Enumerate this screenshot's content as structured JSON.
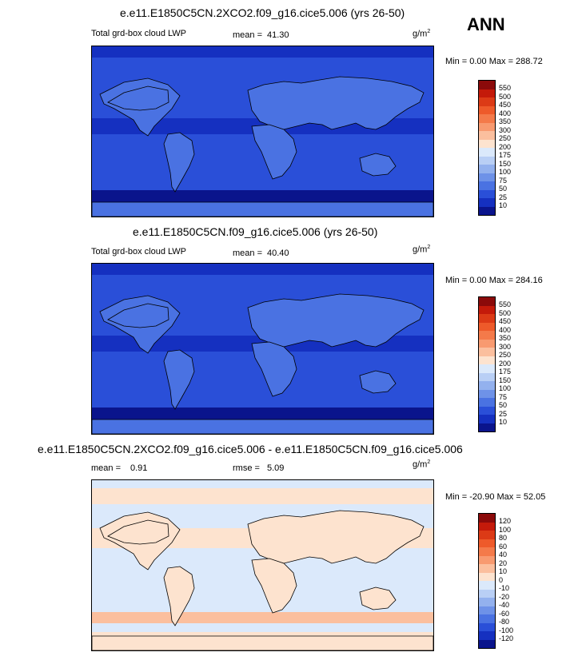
{
  "season": "ANN",
  "panels": [
    {
      "title": "e.e11.E1850C5CN.2XCO2.f09_g16.cice5.006 (yrs 26-50)",
      "variable": "Total grd-box cloud LWP",
      "stat1_label": "mean =",
      "stat1_value": "41.30",
      "stat2_label": "",
      "stat2_value": "",
      "unit_base": "g/m",
      "unit_exp": "2",
      "minmax": "Min =   0.00 Max = 288.72",
      "colorbar_labels": [
        "550",
        "500",
        "450",
        "400",
        "350",
        "300",
        "250",
        "200",
        "175",
        "150",
        "100",
        "75",
        "50",
        "25",
        "10"
      ],
      "colorbar_colors": [
        "#8b0a0a",
        "#c41a0a",
        "#dc3a16",
        "#ee5a2a",
        "#f47a4a",
        "#f89a70",
        "#fbbf9e",
        "#fde3cf",
        "#dbe9fb",
        "#b9cff5",
        "#93b1ee",
        "#6e92e8",
        "#4a72e2",
        "#2a4fd8",
        "#1530c0",
        "#0a148c"
      ]
    },
    {
      "title": "e.e11.E1850C5CN.f09_g16.cice5.006 (yrs 26-50)",
      "variable": "Total grd-box cloud LWP",
      "stat1_label": "mean =",
      "stat1_value": "40.40",
      "stat2_label": "",
      "stat2_value": "",
      "unit_base": "g/m",
      "unit_exp": "2",
      "minmax": "Min =   0.00 Max = 284.16",
      "colorbar_labels": [
        "550",
        "500",
        "450",
        "400",
        "350",
        "300",
        "250",
        "200",
        "175",
        "150",
        "100",
        "75",
        "50",
        "25",
        "10"
      ],
      "colorbar_colors": [
        "#8b0a0a",
        "#c41a0a",
        "#dc3a16",
        "#ee5a2a",
        "#f47a4a",
        "#f89a70",
        "#fbbf9e",
        "#fde3cf",
        "#dbe9fb",
        "#b9cff5",
        "#93b1ee",
        "#6e92e8",
        "#4a72e2",
        "#2a4fd8",
        "#1530c0",
        "#0a148c"
      ]
    },
    {
      "title": "e.e11.E1850C5CN.2XCO2.f09_g16.cice5.006 - e.e11.E1850C5CN.f09_g16.cice5.006",
      "variable": "",
      "stat1_label": "mean =",
      "stat1_value": "0.91",
      "stat2_label": "rmse =",
      "stat2_value": "5.09",
      "unit_base": "g/m",
      "unit_exp": "2",
      "minmax": "Min = -20.90 Max =  52.05",
      "colorbar_labels": [
        "120",
        "100",
        "80",
        "60",
        "40",
        "20",
        "10",
        "0",
        "-10",
        "-20",
        "-40",
        "-60",
        "-80",
        "-100",
        "-120"
      ],
      "colorbar_colors": [
        "#8b0a0a",
        "#c41a0a",
        "#dc3a16",
        "#ee5a2a",
        "#f47a4a",
        "#f89a70",
        "#fbbf9e",
        "#fde3cf",
        "#dbe9fb",
        "#b9cff5",
        "#93b1ee",
        "#6e92e8",
        "#4a72e2",
        "#2a4fd8",
        "#1530c0",
        "#0a148c"
      ]
    }
  ]
}
